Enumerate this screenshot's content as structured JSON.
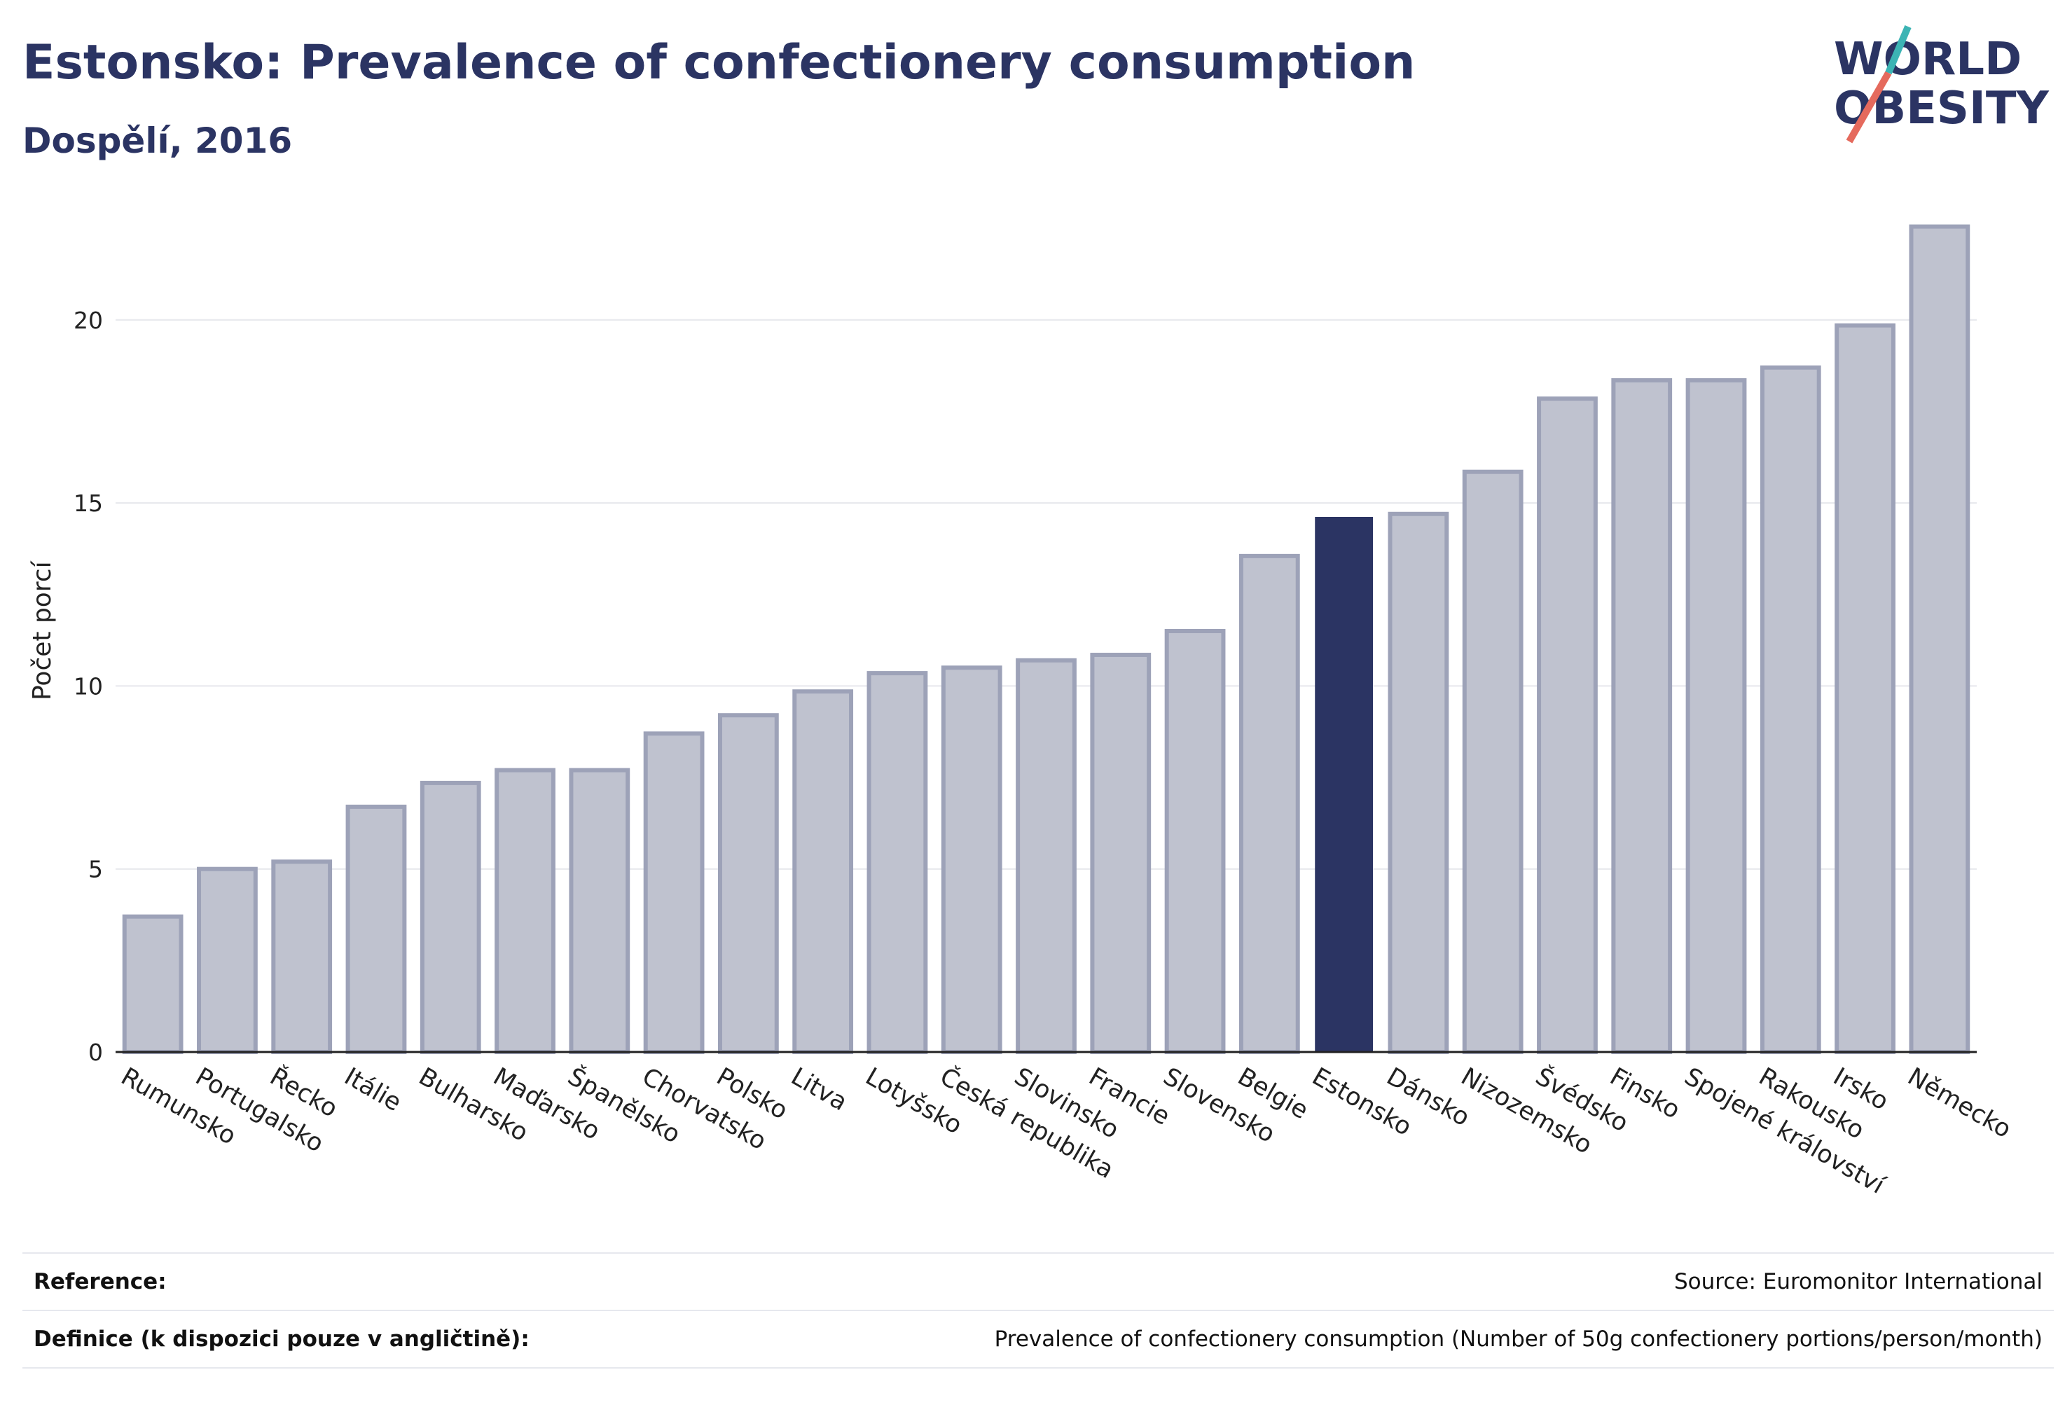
{
  "header": {
    "title": "Estonsko: Prevalence of confectionery consumption",
    "subtitle": "Dospělí, 2016"
  },
  "logo": {
    "line1": "WORLD",
    "line2": "OBESITY",
    "slash_colors": [
      "#e56a5d",
      "#3cb4b4"
    ]
  },
  "colors": {
    "bar_fill": "#bfc2cf",
    "bar_stroke": "#9da2b8",
    "highlight": "#2b3463",
    "grid": "#e6e7ec",
    "title": "#2b3463"
  },
  "chart_data": {
    "type": "bar",
    "ylabel": "Počet porcí",
    "xlabel": "",
    "ylim": [
      0,
      23
    ],
    "yticks": [
      0,
      5,
      10,
      15,
      20
    ],
    "grid": true,
    "highlight": "Estonsko",
    "categories": [
      "Rumunsko",
      "Portugalsko",
      "Řecko",
      "Itálie",
      "Bulharsko",
      "Maďarsko",
      "Španělsko",
      "Chorvatsko",
      "Polsko",
      "Litva",
      "Lotyšsko",
      "Česká republika",
      "Slovinsko",
      "Francie",
      "Slovensko",
      "Belgie",
      "Estonsko",
      "Dánsko",
      "Nizozemsko",
      "Švédsko",
      "Finsko",
      "Spojené království",
      "Rakousko",
      "Irsko",
      "Německo"
    ],
    "values": [
      3.7,
      5.0,
      5.2,
      6.7,
      7.35,
      7.7,
      7.7,
      8.7,
      9.2,
      9.85,
      10.35,
      10.5,
      10.7,
      10.85,
      11.5,
      13.55,
      14.6,
      14.7,
      15.85,
      17.85,
      18.35,
      18.35,
      18.7,
      19.85,
      22.55
    ]
  },
  "footer": {
    "reference_label": "Reference:",
    "reference_value": "Source: Euromonitor International",
    "definition_label": "Definice (k dispozici pouze v angličtině):",
    "definition_value": "Prevalence of confectionery consumption (Number of 50g confectionery portions/person/month)"
  }
}
